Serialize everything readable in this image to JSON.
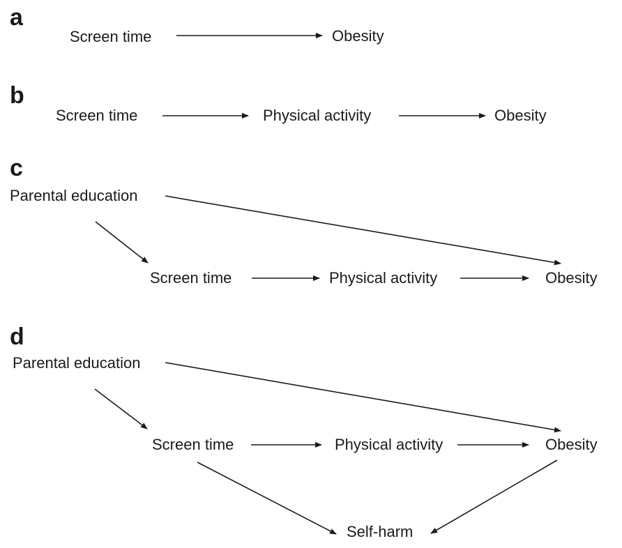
{
  "panels": {
    "a": {
      "label": "a",
      "nodes": {
        "screen_time": "Screen time",
        "obesity": "Obesity"
      },
      "edges": [
        [
          "screen_time",
          "obesity"
        ]
      ]
    },
    "b": {
      "label": "b",
      "nodes": {
        "screen_time": "Screen time",
        "physical_activity": "Physical activity",
        "obesity": "Obesity"
      },
      "edges": [
        [
          "screen_time",
          "physical_activity"
        ],
        [
          "physical_activity",
          "obesity"
        ]
      ]
    },
    "c": {
      "label": "c",
      "nodes": {
        "parental_education": "Parental education",
        "screen_time": "Screen time",
        "physical_activity": "Physical activity",
        "obesity": "Obesity"
      },
      "edges": [
        [
          "parental_education",
          "obesity"
        ],
        [
          "parental_education",
          "screen_time"
        ],
        [
          "screen_time",
          "physical_activity"
        ],
        [
          "physical_activity",
          "obesity"
        ]
      ]
    },
    "d": {
      "label": "d",
      "nodes": {
        "parental_education": "Parental education",
        "screen_time": "Screen time",
        "physical_activity": "Physical activity",
        "obesity": "Obesity",
        "self_harm": "Self-harm"
      },
      "edges": [
        [
          "parental_education",
          "obesity"
        ],
        [
          "parental_education",
          "screen_time"
        ],
        [
          "screen_time",
          "physical_activity"
        ],
        [
          "physical_activity",
          "obesity"
        ],
        [
          "screen_time",
          "self_harm"
        ],
        [
          "obesity",
          "self_harm"
        ]
      ]
    }
  },
  "colors": {
    "ink": "#1a1a1a",
    "background": "#ffffff"
  }
}
